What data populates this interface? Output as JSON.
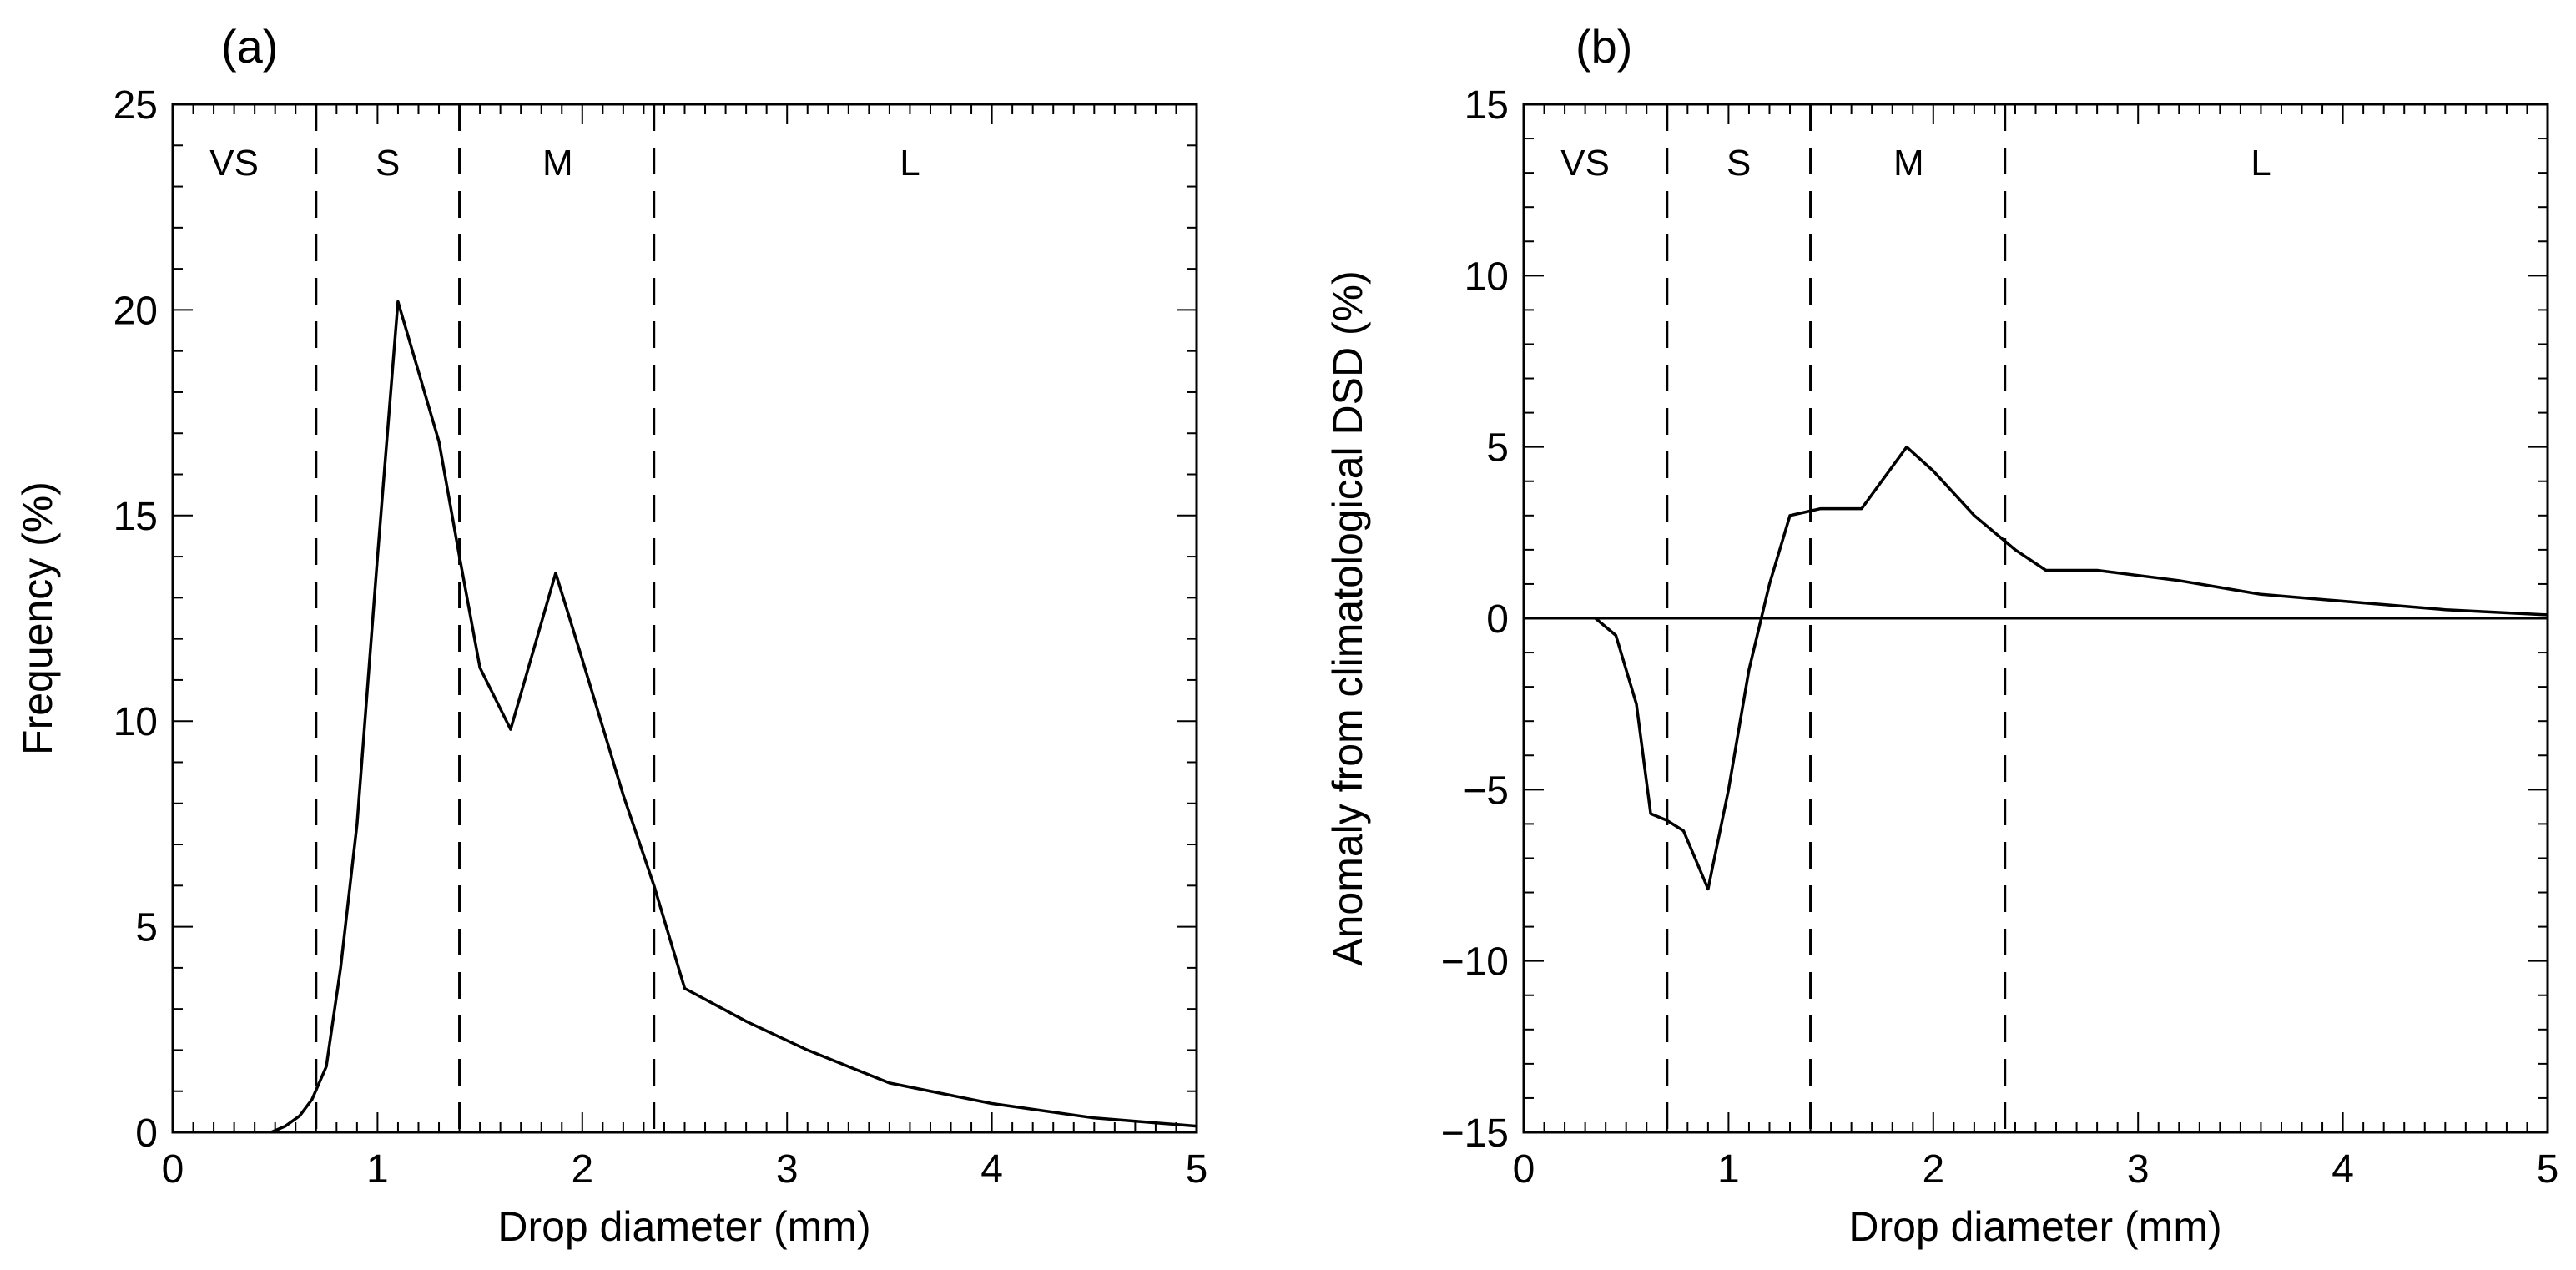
{
  "chart_data": [
    {
      "type": "line",
      "panel_label": "(a)",
      "title": "",
      "xlabel": "Drop diameter (mm)",
      "ylabel": "Frequency (%)",
      "xlim": [
        0,
        5
      ],
      "ylim": [
        0,
        25
      ],
      "xticks": [
        0,
        1,
        2,
        3,
        4,
        5
      ],
      "yticks": [
        0,
        5,
        10,
        15,
        20,
        25
      ],
      "xtick_labels": [
        "0",
        "1",
        "2",
        "3",
        "4",
        "5"
      ],
      "ytick_labels": [
        "0",
        "5",
        "10",
        "15",
        "20",
        "25"
      ],
      "grid": false,
      "dividers": [
        0.7,
        1.4,
        2.35
      ],
      "regions": [
        {
          "label": "VS",
          "x": 0.3
        },
        {
          "label": "S",
          "x": 1.05
        },
        {
          "label": "M",
          "x": 1.88
        },
        {
          "label": "L",
          "x": 3.6
        }
      ],
      "series": [
        {
          "name": "Frequency",
          "x": [
            0.48,
            0.55,
            0.62,
            0.68,
            0.75,
            0.82,
            0.9,
            1.0,
            1.1,
            1.3,
            1.4,
            1.5,
            1.65,
            1.87,
            2.0,
            2.2,
            2.35,
            2.5,
            2.8,
            3.1,
            3.5,
            4.0,
            4.5,
            5.0
          ],
          "y": [
            0.0,
            0.15,
            0.4,
            0.8,
            1.6,
            4.0,
            7.5,
            14.0,
            20.2,
            16.8,
            14.0,
            11.3,
            9.8,
            13.6,
            11.5,
            8.2,
            6.0,
            3.5,
            2.7,
            2.0,
            1.2,
            0.7,
            0.35,
            0.15
          ]
        }
      ]
    },
    {
      "type": "line",
      "panel_label": "(b)",
      "title": "",
      "xlabel": "Drop diameter (mm)",
      "ylabel": "Anomaly from climatological DSD (%)",
      "xlim": [
        0,
        5
      ],
      "ylim": [
        -15,
        15
      ],
      "xticks": [
        0,
        1,
        2,
        3,
        4,
        5
      ],
      "yticks": [
        -15,
        -10,
        -5,
        0,
        5,
        10,
        15
      ],
      "xtick_labels": [
        "0",
        "1",
        "2",
        "3",
        "4",
        "5"
      ],
      "ytick_labels": [
        "−15",
        "−10",
        "−5",
        "0",
        "5",
        "10",
        "15"
      ],
      "grid": false,
      "zero_line": true,
      "dividers": [
        0.7,
        1.4,
        2.35
      ],
      "regions": [
        {
          "label": "VS",
          "x": 0.3
        },
        {
          "label": "S",
          "x": 1.05
        },
        {
          "label": "M",
          "x": 1.88
        },
        {
          "label": "L",
          "x": 3.6
        }
      ],
      "series": [
        {
          "name": "Anomaly",
          "x": [
            0.35,
            0.45,
            0.55,
            0.62,
            0.7,
            0.78,
            0.9,
            1.0,
            1.1,
            1.2,
            1.3,
            1.45,
            1.65,
            1.87,
            2.0,
            2.2,
            2.4,
            2.55,
            2.8,
            3.2,
            3.6,
            4.0,
            4.5,
            5.0
          ],
          "y": [
            0.0,
            -0.5,
            -2.5,
            -5.7,
            -5.9,
            -6.2,
            -7.9,
            -5.0,
            -1.5,
            1.0,
            3.0,
            3.2,
            3.2,
            5.0,
            4.3,
            3.0,
            2.0,
            1.4,
            1.4,
            1.1,
            0.7,
            0.5,
            0.25,
            0.1
          ]
        }
      ]
    }
  ]
}
